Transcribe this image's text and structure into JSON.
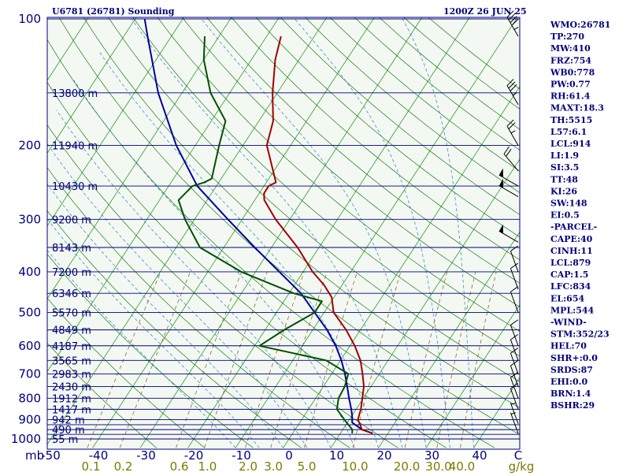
{
  "header": {
    "station": "U6781 (26781) Sounding",
    "time": "1200Z 26 JUN 25"
  },
  "indices": [
    "WMO:26781",
    "TP:270",
    "MW:410",
    "FRZ:754",
    "WB0:778",
    "PW:0.77",
    "RH:61.4",
    "MAXT:18.3",
    "TH:5515",
    "L57:6.1",
    "LCL:914",
    "LI:1.9",
    "SI:3.5",
    "TT:48",
    "KI:26",
    "SW:148",
    "EI:0.5",
    "-PARCEL-",
    "CAPE:40",
    "CINH:11",
    "LCL:879",
    "CAP:1.5",
    "LFC:834",
    "EL:654",
    "MPL:544",
    "-WIND-",
    "STM:352/23",
    "HEL:70",
    "SHR+:0.0",
    "SRDS:87",
    "EHI:0.0",
    "BRN:1.4",
    "BSHR:29"
  ],
  "colors": {
    "background": "#f4f8f2",
    "isobar": "#000080",
    "isotherm": "#2a9a2a",
    "dry_adiabat": "#1a7a1a",
    "moist_adiabat": "#3a8fc8",
    "mixing_ratio": "#8a6a30",
    "temperature": "#a00000",
    "dewpoint": "#005000",
    "parcel": "#0000a0",
    "text": "#00007a",
    "mixing_text": "#7a7a00"
  },
  "chart_data": {
    "type": "line",
    "title": "U6781 (26781) Sounding",
    "subtitle": "1200Z 26 JUN 25",
    "pressure_unit": "mb",
    "mixing_unit": "g/kg",
    "pressure_labels": [
      "100",
      "200",
      "300",
      "400",
      "500",
      "600",
      "700",
      "800",
      "900",
      "1000"
    ],
    "pressure_values": [
      100,
      200,
      300,
      400,
      500,
      600,
      700,
      800,
      900,
      1000
    ],
    "temperature_labels": [
      "-50",
      "-40",
      "-30",
      "-20",
      "-10",
      "0",
      "10",
      "20",
      "30",
      "40",
      "C"
    ],
    "temperature_ticks": [
      -50,
      -40,
      -30,
      -20,
      -10,
      0,
      10,
      20,
      30,
      40
    ],
    "mixing_ratio_labels": [
      "0.1",
      "0.2",
      "0.6",
      "1.0",
      "2.0",
      "3.0",
      "5.0",
      "10.0",
      "20.0",
      "30.0",
      "40.0",
      "g/kg"
    ],
    "mixing_ratio_values": [
      0.1,
      0.2,
      0.6,
      1.0,
      2.0,
      3.0,
      5.0,
      10.0,
      20.0,
      30.0,
      40.0
    ],
    "isobars_mb": [
      100,
      150,
      200,
      250,
      300,
      350,
      400,
      450,
      500,
      550,
      600,
      650,
      700,
      750,
      800,
      850,
      900,
      925,
      950,
      975,
      1000
    ],
    "heights": [
      {
        "p": 150,
        "label": "13800 m"
      },
      {
        "p": 200,
        "label": "11940 m"
      },
      {
        "p": 250,
        "label": "10430 m"
      },
      {
        "p": 300,
        "label": "9200 m"
      },
      {
        "p": 350,
        "label": "8143 m"
      },
      {
        "p": 400,
        "label": "7200 m"
      },
      {
        "p": 450,
        "label": "6346 m"
      },
      {
        "p": 500,
        "label": "5570 m"
      },
      {
        "p": 550,
        "label": "4849 m"
      },
      {
        "p": 600,
        "label": "4187 m"
      },
      {
        "p": 650,
        "label": "3565 m"
      },
      {
        "p": 700,
        "label": "2983 m"
      },
      {
        "p": 750,
        "label": "2430 m"
      },
      {
        "p": 800,
        "label": "1912 m"
      },
      {
        "p": 850,
        "label": "1417 m"
      },
      {
        "p": 900,
        "label": "942 m"
      },
      {
        "p": 950,
        "label": "490 m"
      },
      {
        "p": 1000,
        "label": "55 m"
      }
    ],
    "temperature_profile": [
      {
        "p": 970,
        "t": 16.8
      },
      {
        "p": 950,
        "t": 14.0
      },
      {
        "p": 925,
        "t": 13.0
      },
      {
        "p": 900,
        "t": 11.8
      },
      {
        "p": 850,
        "t": 11.0
      },
      {
        "p": 800,
        "t": 9.8
      },
      {
        "p": 750,
        "t": 8.5
      },
      {
        "p": 700,
        "t": 6.5
      },
      {
        "p": 650,
        "t": 4.2
      },
      {
        "p": 600,
        "t": 1.0
      },
      {
        "p": 550,
        "t": -3.0
      },
      {
        "p": 500,
        "t": -8.0
      },
      {
        "p": 460,
        "t": -10.5
      },
      {
        "p": 430,
        "t": -13.8
      },
      {
        "p": 400,
        "t": -18.0
      },
      {
        "p": 350,
        "t": -24.5
      },
      {
        "p": 300,
        "t": -33.0
      },
      {
        "p": 270,
        "t": -38.0
      },
      {
        "p": 260,
        "t": -39.0
      },
      {
        "p": 250,
        "t": -39.0
      },
      {
        "p": 245,
        "t": -38.0
      },
      {
        "p": 200,
        "t": -45.0
      },
      {
        "p": 175,
        "t": -47.0
      },
      {
        "p": 150,
        "t": -51.0
      },
      {
        "p": 125,
        "t": -55.0
      },
      {
        "p": 110,
        "t": -57.0
      }
    ],
    "dewpoint_profile": [
      {
        "p": 970,
        "t": 12.5
      },
      {
        "p": 950,
        "t": 12.0
      },
      {
        "p": 900,
        "t": 9.0
      },
      {
        "p": 850,
        "t": 6.0
      },
      {
        "p": 800,
        "t": 4.8
      },
      {
        "p": 750,
        "t": 4.5
      },
      {
        "p": 700,
        "t": 3.5
      },
      {
        "p": 650,
        "t": -3.0
      },
      {
        "p": 600,
        "t": -19.0
      },
      {
        "p": 550,
        "t": -16.0
      },
      {
        "p": 500,
        "t": -12.0
      },
      {
        "p": 470,
        "t": -12.0
      },
      {
        "p": 450,
        "t": -19.0
      },
      {
        "p": 400,
        "t": -33.0
      },
      {
        "p": 350,
        "t": -45.0
      },
      {
        "p": 300,
        "t": -52.0
      },
      {
        "p": 270,
        "t": -56.0
      },
      {
        "p": 250,
        "t": -55.0
      },
      {
        "p": 245,
        "t": -53.0
      },
      {
        "p": 240,
        "t": -52.0
      },
      {
        "p": 200,
        "t": -55.0
      },
      {
        "p": 175,
        "t": -57.0
      },
      {
        "p": 150,
        "t": -64.0
      },
      {
        "p": 125,
        "t": -70.0
      },
      {
        "p": 110,
        "t": -73.0
      }
    ],
    "parcel_profile": [
      {
        "p": 970,
        "t": 16.8
      },
      {
        "p": 950,
        "t": 14.0
      },
      {
        "p": 914,
        "t": 11.0
      },
      {
        "p": 879,
        "t": 10.0
      },
      {
        "p": 850,
        "t": 9.0
      },
      {
        "p": 800,
        "t": 7.0
      },
      {
        "p": 750,
        "t": 5.0
      },
      {
        "p": 700,
        "t": 2.8
      },
      {
        "p": 650,
        "t": 0.2
      },
      {
        "p": 600,
        "t": -3.0
      },
      {
        "p": 550,
        "t": -7.0
      },
      {
        "p": 500,
        "t": -12.0
      },
      {
        "p": 450,
        "t": -17.5
      },
      {
        "p": 400,
        "t": -25.0
      },
      {
        "p": 350,
        "t": -33.5
      },
      {
        "p": 300,
        "t": -43.0
      },
      {
        "p": 250,
        "t": -54.0
      },
      {
        "p": 200,
        "t": -64.0
      },
      {
        "p": 150,
        "t": -75.0
      },
      {
        "p": 110,
        "t": -85.0
      },
      {
        "p": 100,
        "t": -88.0
      }
    ],
    "wind_barbs": [
      {
        "p": 110,
        "dir": 330,
        "spd": 45
      },
      {
        "p": 160,
        "dir": 330,
        "spd": 35
      },
      {
        "p": 200,
        "dir": 330,
        "spd": 25
      },
      {
        "p": 230,
        "dir": 320,
        "spd": 20
      },
      {
        "p": 250,
        "dir": 300,
        "spd": 50
      },
      {
        "p": 265,
        "dir": 300,
        "spd": 50
      },
      {
        "p": 340,
        "dir": 300,
        "spd": 50
      },
      {
        "p": 400,
        "dir": 340,
        "spd": 10
      },
      {
        "p": 440,
        "dir": 340,
        "spd": 10
      },
      {
        "p": 500,
        "dir": 340,
        "spd": 10
      },
      {
        "p": 600,
        "dir": 340,
        "spd": 10
      },
      {
        "p": 650,
        "dir": 340,
        "spd": 10
      },
      {
        "p": 700,
        "dir": 340,
        "spd": 10
      },
      {
        "p": 750,
        "dir": 340,
        "spd": 10
      },
      {
        "p": 800,
        "dir": 340,
        "spd": 10
      },
      {
        "p": 850,
        "dir": 340,
        "spd": 10
      },
      {
        "p": 920,
        "dir": 340,
        "spd": 5
      },
      {
        "p": 970,
        "dir": 340,
        "spd": 5
      }
    ]
  }
}
